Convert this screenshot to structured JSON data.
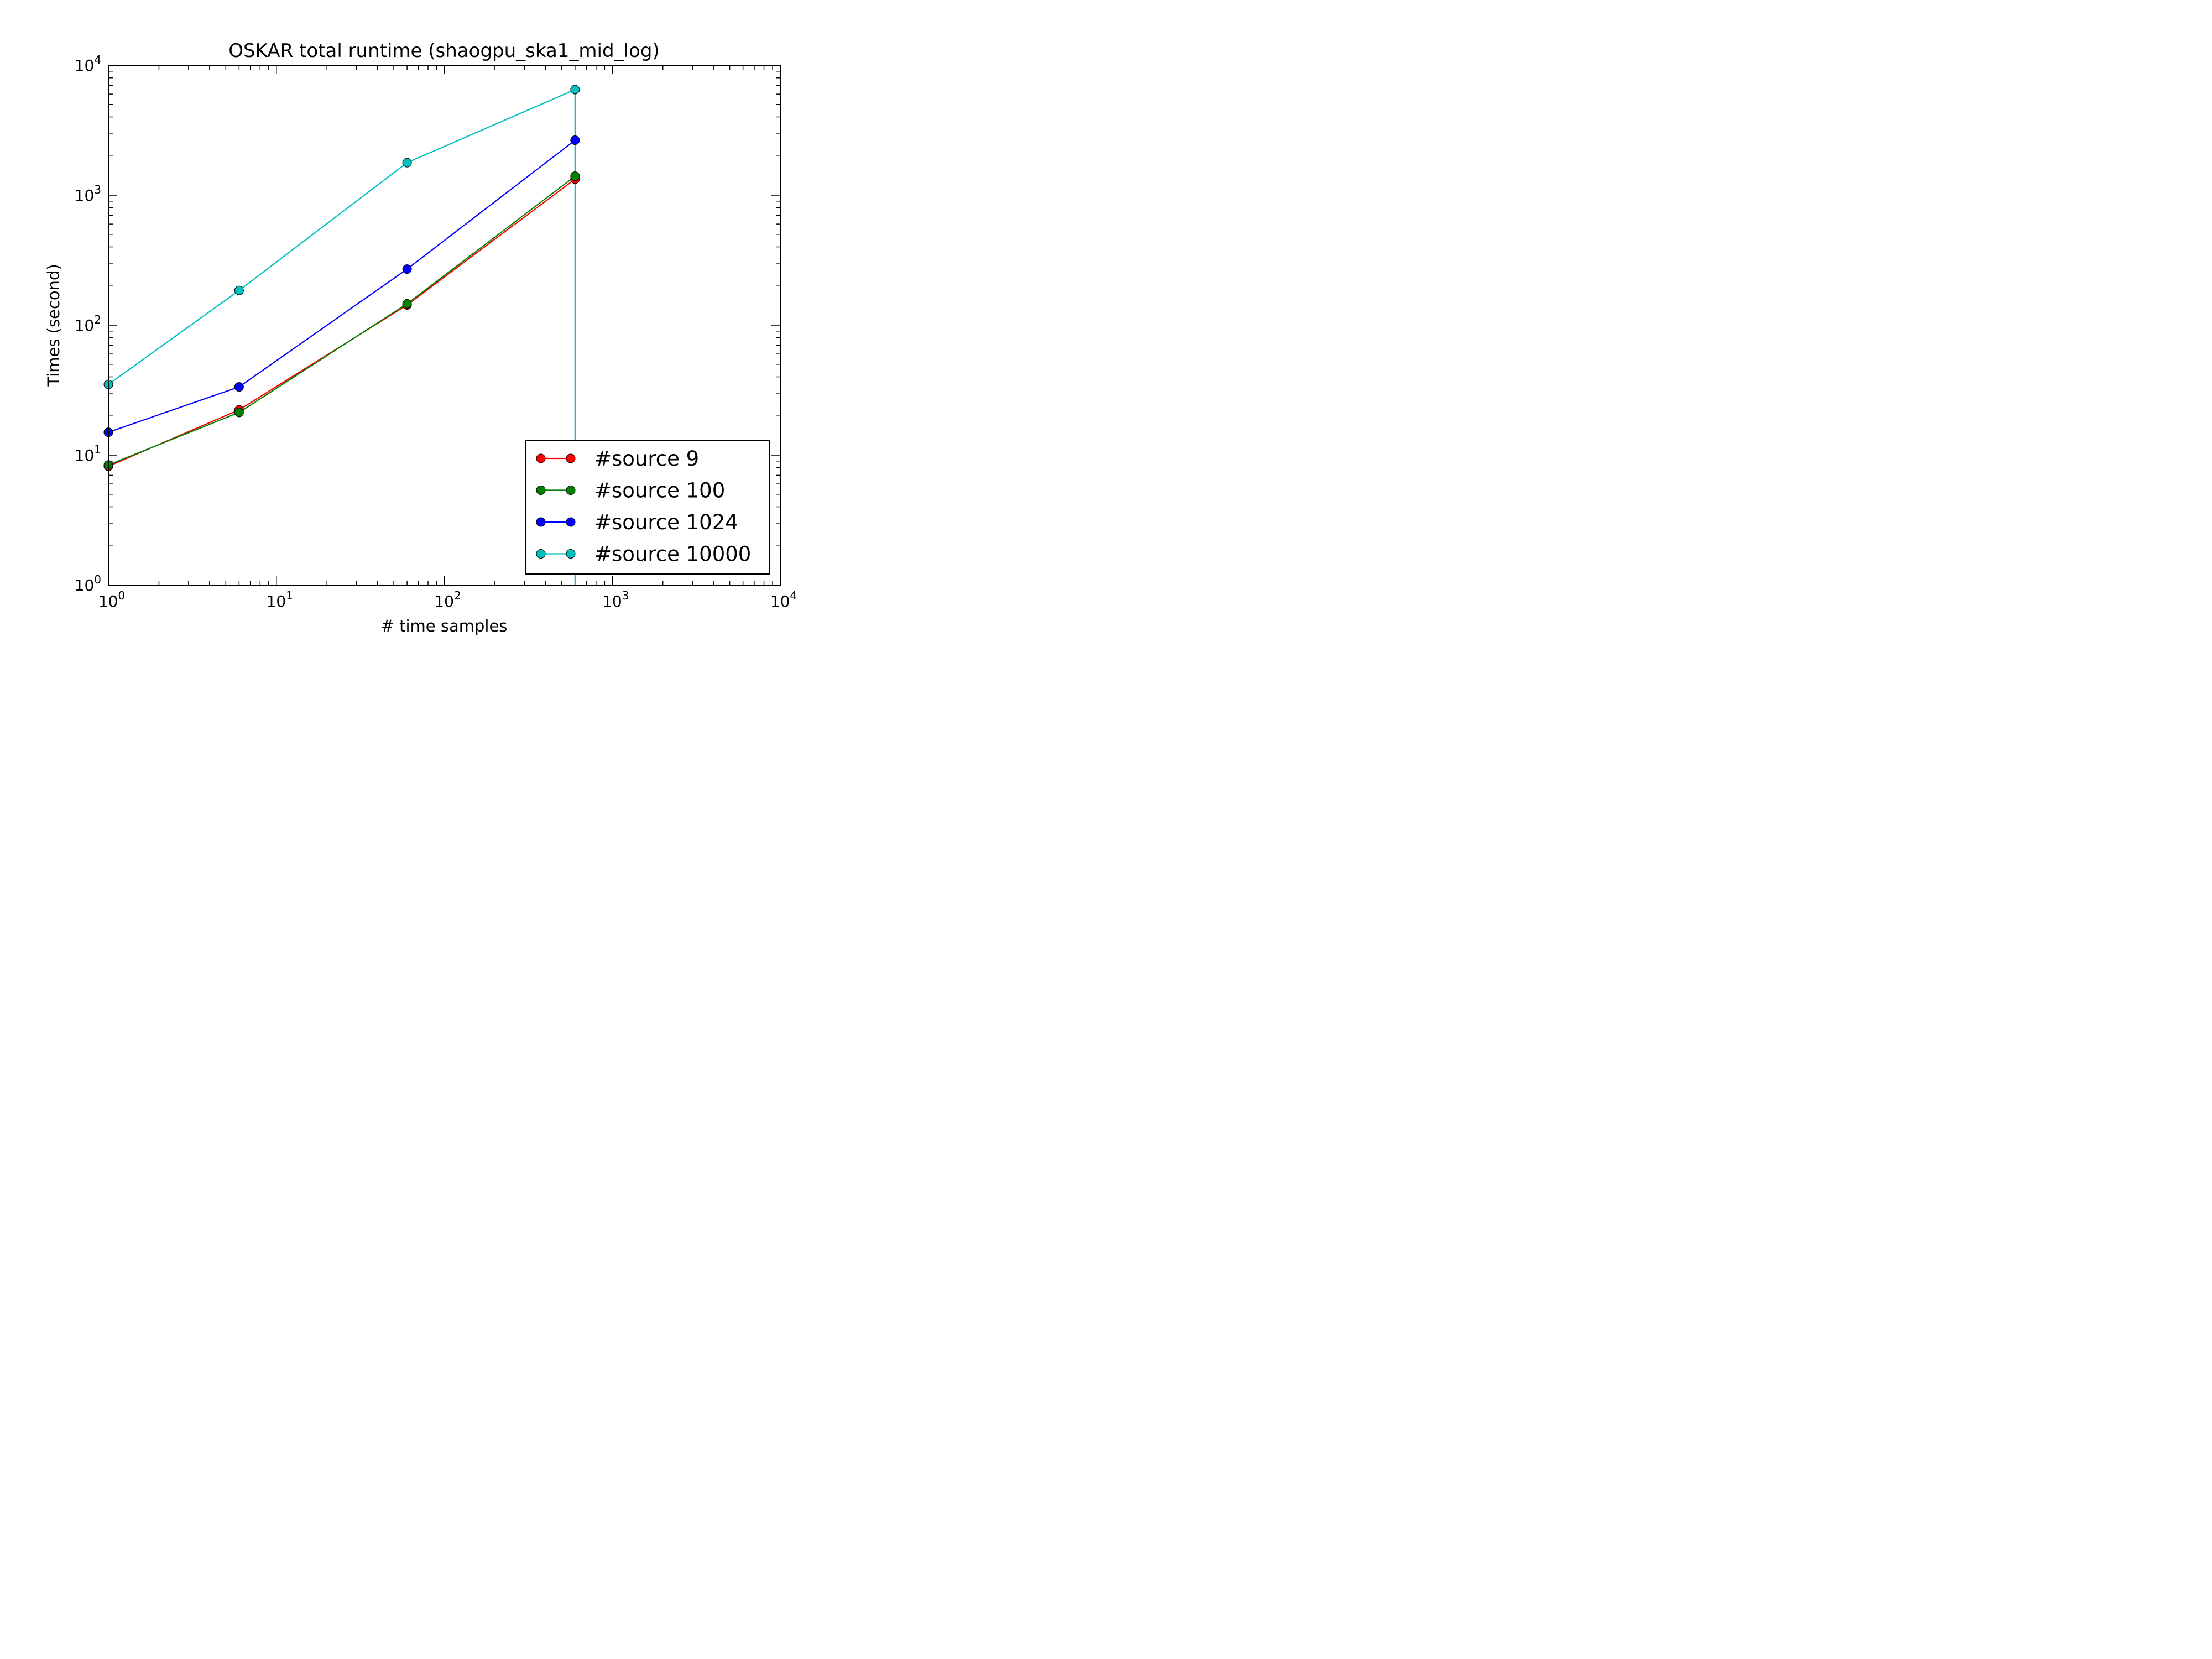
{
  "chart_data": {
    "type": "line",
    "title": "OSKAR total runtime (shaogpu_ska1_mid_log)",
    "xlabel": "# time samples",
    "ylabel": "Times (second)",
    "xscale": "log",
    "yscale": "log",
    "xlim": [
      1,
      10000
    ],
    "ylim": [
      1,
      10000
    ],
    "x_ticks": [
      {
        "base": "10",
        "exp": "0"
      },
      {
        "base": "10",
        "exp": "1"
      },
      {
        "base": "10",
        "exp": "2"
      },
      {
        "base": "10",
        "exp": "3"
      },
      {
        "base": "10",
        "exp": "4"
      }
    ],
    "y_ticks": [
      {
        "base": "10",
        "exp": "0"
      },
      {
        "base": "10",
        "exp": "1"
      },
      {
        "base": "10",
        "exp": "2"
      },
      {
        "base": "10",
        "exp": "3"
      },
      {
        "base": "10",
        "exp": "4"
      }
    ],
    "grid": false,
    "legend_position": "bottom-right",
    "series": [
      {
        "name": "#source 9",
        "color": "#ff0000",
        "x": [
          1,
          6,
          60,
          600
        ],
        "y": [
          8.2,
          22.3,
          143,
          1330
        ]
      },
      {
        "name": "#source 100",
        "color": "#008000",
        "x": [
          1,
          6,
          60,
          600
        ],
        "y": [
          8.4,
          21.3,
          146,
          1400
        ]
      },
      {
        "name": "#source 1024",
        "color": "#0000ff",
        "x": [
          1,
          6,
          60,
          600
        ],
        "y": [
          15,
          33.5,
          270,
          2650
        ]
      },
      {
        "name": "#source 10000",
        "color": "#00bfbf",
        "x": [
          1,
          6,
          60,
          600,
          600
        ],
        "y": [
          35,
          185,
          1780,
          6500,
          1
        ]
      }
    ]
  }
}
